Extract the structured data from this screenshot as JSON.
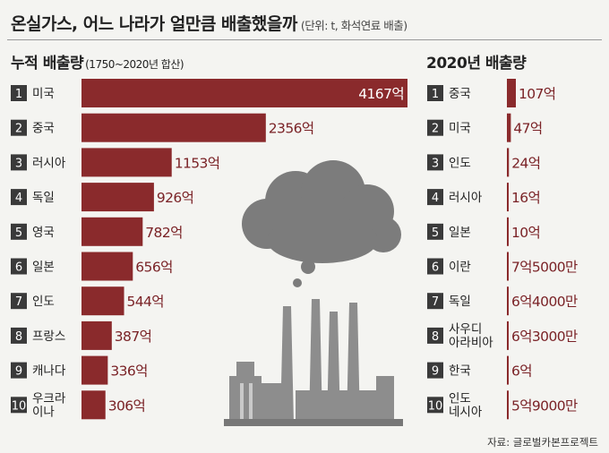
{
  "title": "온실가스, 어느 나라가 얼만큼 배출했을까",
  "unit_note": "(단위: t, 화석연료 배출)",
  "left_heading": "누적 배출량",
  "left_subheading": "(1750~2020년 합산)",
  "right_heading": "2020년 배출량",
  "source": "자료: 글로벌카본프로젝트",
  "colors": {
    "bar": "#8a2a2c",
    "value_text": "#7a2226",
    "rank_box": "#3a3a3a",
    "smoke": "#7c7c7c",
    "factory": "#8d8d8d"
  },
  "chart_data": [
    {
      "type": "bar",
      "orientation": "horizontal",
      "title": "누적 배출량",
      "subtitle": "(1750~2020년 합산)",
      "ranks": [
        "1",
        "2",
        "3",
        "4",
        "5",
        "6",
        "7",
        "8",
        "9",
        "10"
      ],
      "categories": [
        [
          "미국"
        ],
        [
          "중국"
        ],
        [
          "러시아"
        ],
        [
          "독일"
        ],
        [
          "영국"
        ],
        [
          "일본"
        ],
        [
          "인도"
        ],
        [
          "프랑스"
        ],
        [
          "캐나다"
        ],
        [
          "우크라",
          "이나"
        ]
      ],
      "values": [
        4167,
        2356,
        1153,
        926,
        782,
        656,
        544,
        387,
        336,
        306
      ],
      "value_labels": [
        "4167억",
        "2356억",
        "1153억",
        "926억",
        "782억",
        "656억",
        "544억",
        "387억",
        "336억",
        "306억"
      ],
      "unit": "억 t"
    },
    {
      "type": "bar",
      "orientation": "horizontal",
      "title": "2020년 배출량",
      "ranks": [
        "1",
        "2",
        "3",
        "4",
        "5",
        "6",
        "7",
        "8",
        "9",
        "10"
      ],
      "categories": [
        [
          "중국"
        ],
        [
          "미국"
        ],
        [
          "인도"
        ],
        [
          "러시아"
        ],
        [
          "일본"
        ],
        [
          "이란"
        ],
        [
          "독일"
        ],
        [
          "사우디",
          "아라비아"
        ],
        [
          "한국"
        ],
        [
          "인도",
          "네시아"
        ]
      ],
      "values": [
        107,
        47,
        24,
        16,
        10,
        7.5,
        6.4,
        6.3,
        6,
        5.9
      ],
      "value_labels": [
        "107억",
        "47억",
        "24억",
        "16억",
        "10억",
        "7억5000만",
        "6억4000만",
        "6억3000만",
        "6억",
        "5억9000만"
      ],
      "unit": "억 t"
    }
  ]
}
